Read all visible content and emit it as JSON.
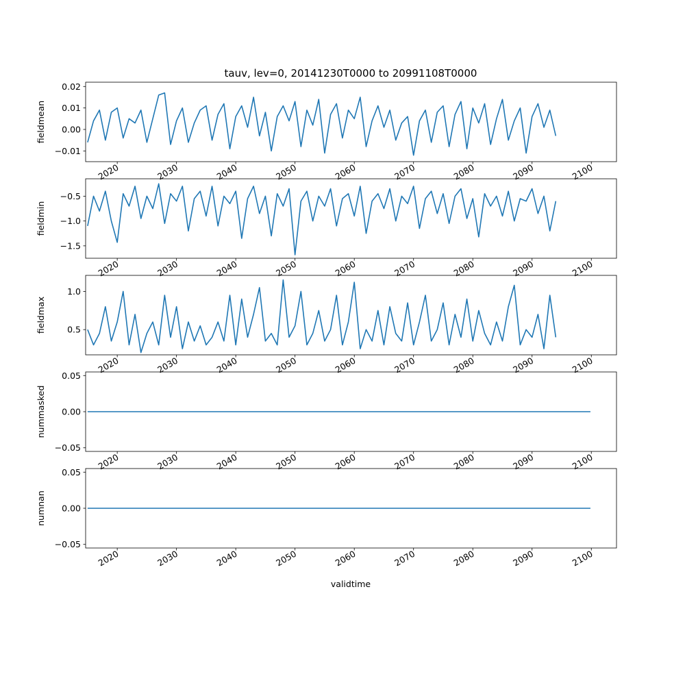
{
  "figure": {
    "title": "tauv, lev=0, 20141230T0000 to 20991108T0000",
    "xlabel": "validtime"
  },
  "style": {
    "line_color": "#1f77b4",
    "axis_color": "#000000"
  },
  "chart_data": [
    {
      "type": "line",
      "ylabel": "fieldmean",
      "x_range": [
        "2014-12-30",
        "2099-11-08"
      ],
      "xlim": [
        "2014-09-01",
        "2104-04-01"
      ],
      "ylim": [
        -0.015,
        0.022
      ],
      "yticks": [
        -0.01,
        0.0,
        0.01,
        0.02
      ],
      "ytick_labels": [
        "−0.01",
        "0.00",
        "0.01",
        "0.02"
      ],
      "xticks": [
        2020,
        2030,
        2040,
        2050,
        2060,
        2070,
        2080,
        2090,
        2100
      ],
      "xtick_labels": [
        "2020",
        "2030",
        "2040",
        "2050",
        "2060",
        "2070",
        "2080",
        "2090",
        "2100"
      ],
      "series": [
        {
          "x_start": 2015.0,
          "x_step": 1,
          "values": [
            -0.006,
            0.004,
            0.009,
            -0.005,
            0.008,
            0.01,
            -0.004,
            0.005,
            0.003,
            0.009,
            -0.006,
            0.005,
            0.016,
            0.017,
            -0.007,
            0.004,
            0.01,
            -0.006,
            0.003,
            0.009,
            0.011,
            -0.005,
            0.007,
            0.012,
            -0.009,
            0.006,
            0.011,
            0.001,
            0.015,
            -0.003,
            0.008,
            -0.01,
            0.006,
            0.011,
            0.004,
            0.013,
            -0.008,
            0.009,
            0.002,
            0.014,
            -0.011,
            0.007,
            0.012,
            -0.004,
            0.009,
            0.005,
            0.015,
            -0.008,
            0.004,
            0.011,
            0.001,
            0.009,
            -0.005,
            0.003,
            0.006,
            -0.012,
            0.004,
            0.009,
            -0.006,
            0.008,
            0.011,
            -0.008,
            0.007,
            0.013,
            -0.009,
            0.01,
            0.003,
            0.012,
            -0.007,
            0.005,
            0.014,
            -0.005,
            0.004,
            0.01,
            -0.011,
            0.006,
            0.012,
            0.001,
            0.009,
            -0.003
          ]
        }
      ]
    },
    {
      "type": "line",
      "ylabel": "fieldmin",
      "x_range": [
        "2014-12-30",
        "2099-11-08"
      ],
      "xlim": [
        "2014-09-01",
        "2104-04-01"
      ],
      "ylim": [
        -1.75,
        -0.15
      ],
      "yticks": [
        -1.5,
        -1.0,
        -0.5
      ],
      "ytick_labels": [
        "−1.5",
        "−1.0",
        "−0.5"
      ],
      "xticks": [
        2020,
        2030,
        2040,
        2050,
        2060,
        2070,
        2080,
        2090,
        2100
      ],
      "xtick_labels": [
        "2020",
        "2030",
        "2040",
        "2050",
        "2060",
        "2070",
        "2080",
        "2090",
        "2100"
      ],
      "series": [
        {
          "x_start": 2015.0,
          "x_step": 1,
          "values": [
            -1.1,
            -0.5,
            -0.8,
            -0.4,
            -1.0,
            -1.43,
            -0.45,
            -0.7,
            -0.3,
            -0.95,
            -0.5,
            -0.75,
            -0.25,
            -1.05,
            -0.45,
            -0.6,
            -0.3,
            -1.2,
            -0.55,
            -0.4,
            -0.9,
            -0.3,
            -1.1,
            -0.5,
            -0.65,
            -0.4,
            -1.35,
            -0.55,
            -0.3,
            -0.85,
            -0.5,
            -1.3,
            -0.45,
            -0.7,
            -0.35,
            -1.68,
            -0.6,
            -0.4,
            -1.0,
            -0.5,
            -0.7,
            -0.35,
            -1.1,
            -0.55,
            -0.45,
            -0.9,
            -0.3,
            -1.25,
            -0.6,
            -0.45,
            -0.75,
            -0.35,
            -1.0,
            -0.5,
            -0.65,
            -0.3,
            -1.15,
            -0.55,
            -0.4,
            -0.85,
            -0.45,
            -1.05,
            -0.5,
            -0.35,
            -0.95,
            -0.55,
            -1.32,
            -0.45,
            -0.7,
            -0.5,
            -0.9,
            -0.4,
            -1.0,
            -0.55,
            -0.6,
            -0.35,
            -0.85,
            -0.5,
            -1.2,
            -0.6
          ]
        }
      ]
    },
    {
      "type": "line",
      "ylabel": "fieldmax",
      "x_range": [
        "2014-12-30",
        "2099-11-08"
      ],
      "xlim": [
        "2014-09-01",
        "2104-04-01"
      ],
      "ylim": [
        0.17,
        1.21
      ],
      "yticks": [
        0.5,
        1.0
      ],
      "ytick_labels": [
        "0.5",
        "1.0"
      ],
      "xticks": [
        2020,
        2030,
        2040,
        2050,
        2060,
        2070,
        2080,
        2090,
        2100
      ],
      "xtick_labels": [
        "2020",
        "2030",
        "2040",
        "2050",
        "2060",
        "2070",
        "2080",
        "2090",
        "2100"
      ],
      "series": [
        {
          "x_start": 2015.0,
          "x_step": 1,
          "values": [
            0.5,
            0.3,
            0.45,
            0.8,
            0.35,
            0.6,
            1.0,
            0.3,
            0.7,
            0.2,
            0.45,
            0.6,
            0.3,
            0.95,
            0.4,
            0.8,
            0.25,
            0.6,
            0.35,
            0.55,
            0.3,
            0.4,
            0.6,
            0.35,
            0.95,
            0.3,
            0.9,
            0.4,
            0.7,
            1.05,
            0.35,
            0.45,
            0.3,
            1.15,
            0.4,
            0.55,
            1.0,
            0.3,
            0.45,
            0.75,
            0.35,
            0.5,
            0.95,
            0.3,
            0.6,
            1.12,
            0.25,
            0.5,
            0.35,
            0.75,
            0.3,
            0.8,
            0.45,
            0.35,
            0.85,
            0.3,
            0.6,
            0.95,
            0.35,
            0.5,
            0.85,
            0.3,
            0.7,
            0.4,
            0.9,
            0.35,
            0.75,
            0.45,
            0.3,
            0.6,
            0.35,
            0.8,
            1.08,
            0.3,
            0.5,
            0.4,
            0.7,
            0.25,
            0.95,
            0.4
          ]
        }
      ]
    },
    {
      "type": "line",
      "ylabel": "nummasked",
      "x_range": [
        "2014-12-30",
        "2099-11-08"
      ],
      "xlim": [
        "2014-09-01",
        "2104-04-01"
      ],
      "ylim": [
        -0.055,
        0.055
      ],
      "yticks": [
        -0.05,
        0.0,
        0.05
      ],
      "ytick_labels": [
        "−0.05",
        "0.00",
        "0.05"
      ],
      "xticks": [
        2020,
        2030,
        2040,
        2050,
        2060,
        2070,
        2080,
        2090,
        2100
      ],
      "xtick_labels": [
        "2020",
        "2030",
        "2040",
        "2050",
        "2060",
        "2070",
        "2080",
        "2090",
        "2100"
      ],
      "series": [
        {
          "x_start": 2015.0,
          "x_step": 84.85,
          "values": [
            0,
            0
          ]
        }
      ]
    },
    {
      "type": "line",
      "ylabel": "numnan",
      "x_range": [
        "2014-12-30",
        "2099-11-08"
      ],
      "xlim": [
        "2014-09-01",
        "2104-04-01"
      ],
      "ylim": [
        -0.055,
        0.055
      ],
      "yticks": [
        -0.05,
        0.0,
        0.05
      ],
      "ytick_labels": [
        "−0.05",
        "0.00",
        "0.05"
      ],
      "xticks": [
        2020,
        2030,
        2040,
        2050,
        2060,
        2070,
        2080,
        2090,
        2100
      ],
      "xtick_labels": [
        "2020",
        "2030",
        "2040",
        "2050",
        "2060",
        "2070",
        "2080",
        "2090",
        "2100"
      ],
      "series": [
        {
          "x_start": 2015.0,
          "x_step": 84.85,
          "values": [
            0,
            0
          ]
        }
      ]
    }
  ]
}
